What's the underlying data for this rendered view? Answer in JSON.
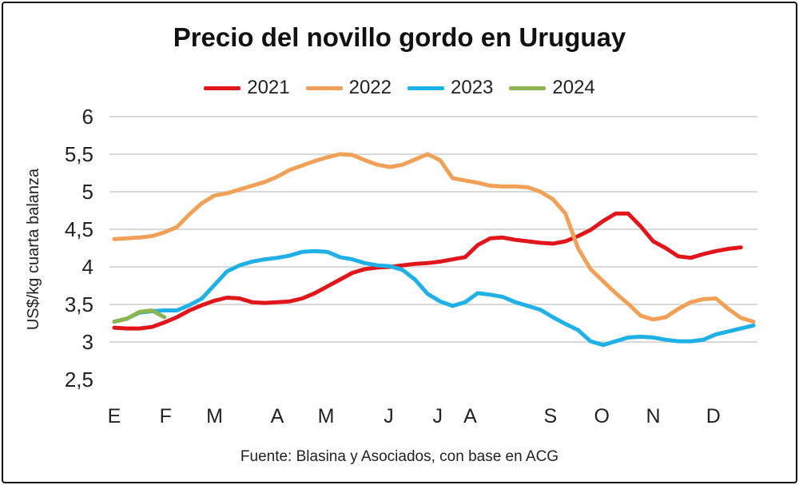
{
  "chart_data": {
    "type": "line",
    "title": "Precio del novillo gordo en Uruguay",
    "ylabel": "US$/kg cuarta balanza",
    "xlabel": "",
    "ylim": [
      2.5,
      6
    ],
    "yticks": [
      2.5,
      3,
      3.5,
      4,
      4.5,
      5,
      5.5,
      6
    ],
    "ytick_labels": [
      "2,5",
      "3",
      "3,5",
      "4",
      "4,5",
      "5",
      "5,5",
      "6"
    ],
    "xlim": [
      1,
      52
    ],
    "xticks": [
      {
        "label": "E",
        "x": 1
      },
      {
        "label": "F",
        "x": 5.1
      },
      {
        "label": "M",
        "x": 9
      },
      {
        "label": "A",
        "x": 14
      },
      {
        "label": "M",
        "x": 17.9
      },
      {
        "label": "J",
        "x": 22.9
      },
      {
        "label": "J",
        "x": 26.8
      },
      {
        "label": "A",
        "x": 29.4
      },
      {
        "label": "S",
        "x": 35.8
      },
      {
        "label": "O",
        "x": 39.9
      },
      {
        "label": "N",
        "x": 44
      },
      {
        "label": "D",
        "x": 48.8
      }
    ],
    "grid": true,
    "legend_position": "top",
    "series": [
      {
        "name": "2021",
        "color": "#e0161b",
        "values": [
          3.19,
          3.18,
          3.18,
          3.2,
          3.26,
          3.33,
          3.42,
          3.49,
          3.55,
          3.59,
          3.58,
          3.53,
          3.52,
          3.53,
          3.54,
          3.58,
          3.65,
          3.74,
          3.83,
          3.92,
          3.97,
          3.99,
          4.0,
          4.02,
          4.04,
          4.05,
          4.07,
          4.1,
          4.13,
          4.29,
          4.38,
          4.39,
          4.36,
          4.34,
          4.32,
          4.31,
          4.34,
          4.41,
          4.49,
          4.61,
          4.71,
          4.71,
          4.54,
          4.34,
          4.25,
          4.14,
          4.12,
          4.17,
          4.21,
          4.24,
          4.26
        ]
      },
      {
        "name": "2022",
        "color": "#f0a057",
        "values": [
          4.37,
          4.38,
          4.39,
          4.41,
          4.46,
          4.53,
          4.7,
          4.85,
          4.95,
          4.98,
          5.03,
          5.08,
          5.13,
          5.2,
          5.29,
          5.35,
          5.41,
          5.46,
          5.5,
          5.49,
          5.42,
          5.36,
          5.33,
          5.36,
          5.43,
          5.5,
          5.42,
          5.18,
          5.15,
          5.12,
          5.08,
          5.07,
          5.07,
          5.06,
          5.0,
          4.9,
          4.71,
          4.25,
          3.97,
          3.81,
          3.65,
          3.51,
          3.35,
          3.3,
          3.33,
          3.44,
          3.53,
          3.57,
          3.58,
          3.44,
          3.32,
          3.27
        ]
      },
      {
        "name": "2023",
        "color": "#1fb0e6",
        "values": [
          3.27,
          3.31,
          3.39,
          3.41,
          3.42,
          3.42,
          3.49,
          3.58,
          3.76,
          3.94,
          4.02,
          4.07,
          4.1,
          4.12,
          4.15,
          4.2,
          4.21,
          4.2,
          4.13,
          4.1,
          4.05,
          4.02,
          4.01,
          3.96,
          3.83,
          3.64,
          3.54,
          3.48,
          3.53,
          3.65,
          3.63,
          3.6,
          3.53,
          3.48,
          3.43,
          3.33,
          3.24,
          3.16,
          3.01,
          2.96,
          3.01,
          3.06,
          3.07,
          3.06,
          3.03,
          3.01,
          3.01,
          3.03,
          3.1,
          3.14,
          3.18,
          3.22
        ]
      },
      {
        "name": "2024",
        "color": "#8cb552",
        "values": [
          3.27,
          3.31,
          3.4,
          3.42,
          3.33
        ]
      }
    ],
    "source": "Fuente: Blasina y Asociados, con base en ACG"
  }
}
